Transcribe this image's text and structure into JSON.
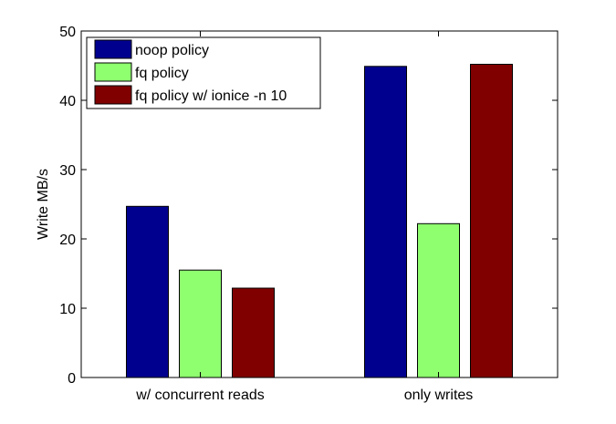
{
  "chart_data": {
    "type": "bar",
    "categories": [
      "w/ concurrent reads",
      "only writes"
    ],
    "series": [
      {
        "name": "noop policy",
        "color": "#00008f",
        "values": [
          24.7,
          44.9
        ]
      },
      {
        "name": "fq policy",
        "color": "#8fff70",
        "values": [
          15.5,
          22.2
        ]
      },
      {
        "name": "fq policy w/ ionice -n 10",
        "color": "#800000",
        "values": [
          12.9,
          45.2
        ]
      }
    ],
    "ylabel": "Write MB/s",
    "xlabel": "",
    "ylim": [
      0,
      50
    ],
    "yticks": [
      "0",
      "10",
      "20",
      "30",
      "40",
      "50"
    ],
    "legend_position": "top-left",
    "grid": false
  }
}
